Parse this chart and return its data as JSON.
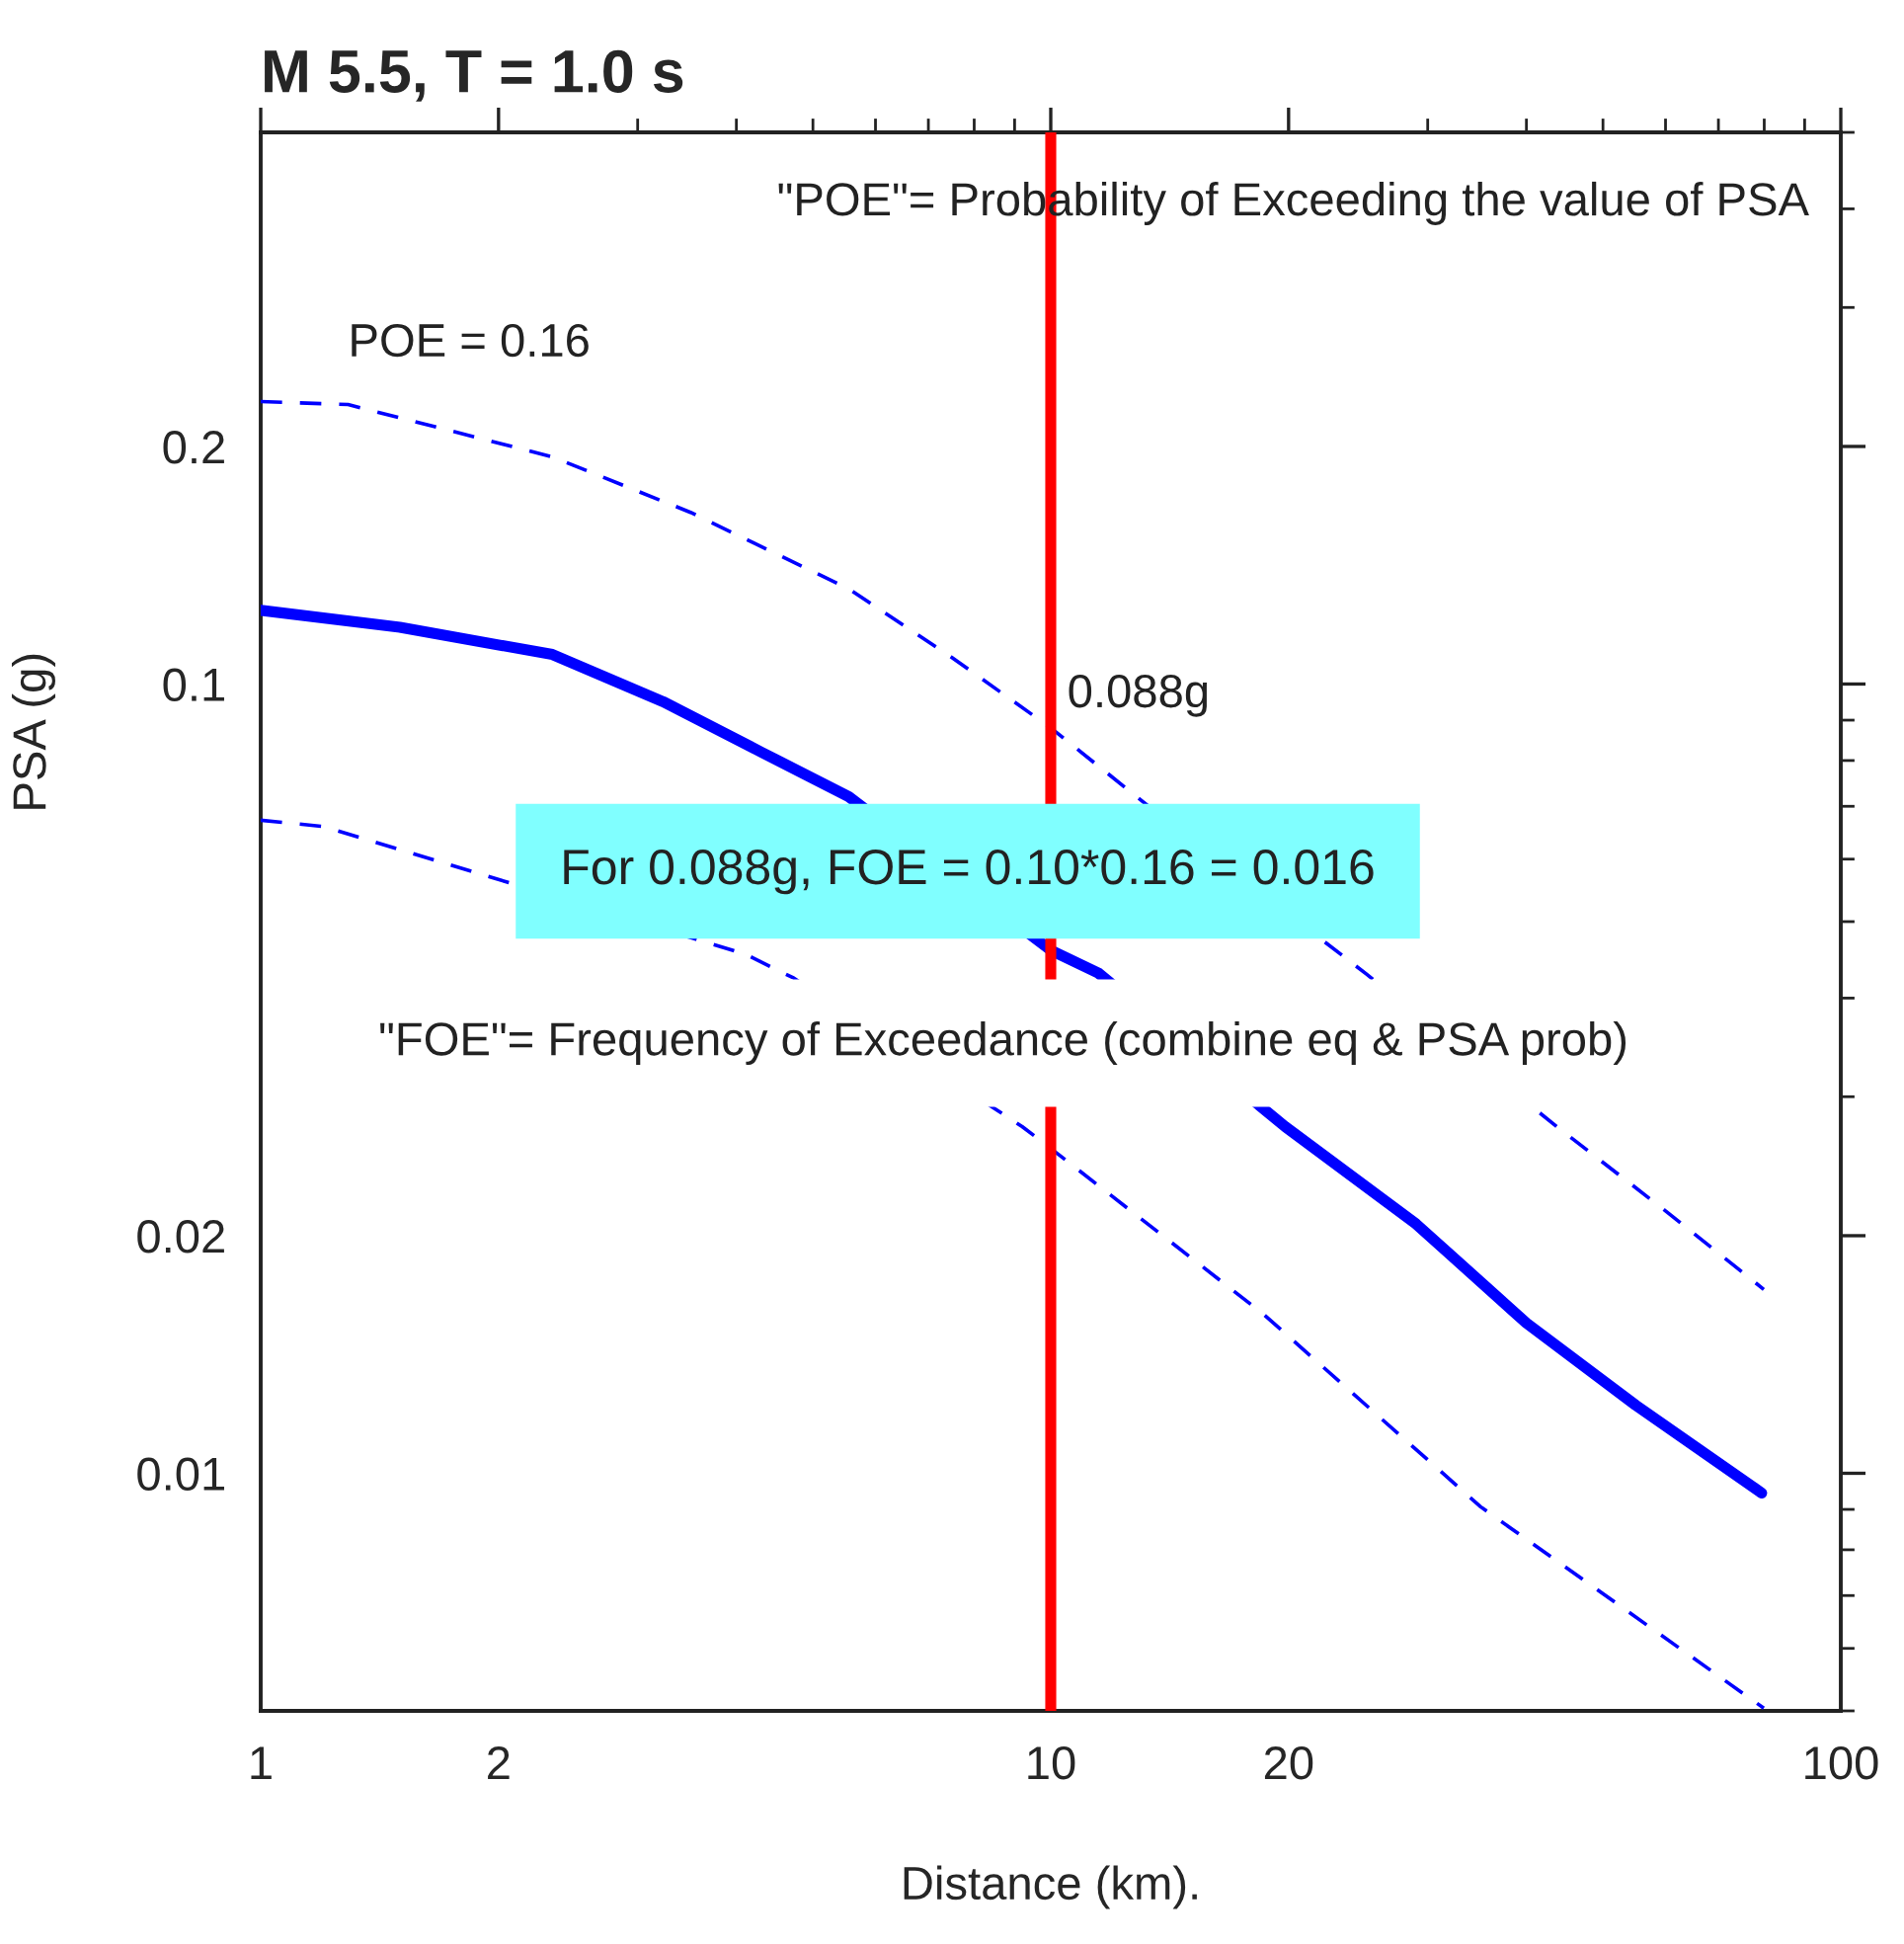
{
  "chart_data": {
    "type": "line",
    "title": "M 5.5, T = 1.0 s",
    "xlabel": "Distance (km).",
    "ylabel": "PSA (g)",
    "log": "xy",
    "xlim": [
      1,
      100
    ],
    "ylim": [
      0.005,
      0.5
    ],
    "xticks": [
      1,
      2,
      10,
      20,
      100
    ],
    "yticks": [
      0.01,
      0.02,
      0.1,
      0.2
    ],
    "series": [
      {
        "color": "#0000ff",
        "line_style": "solid",
        "x": [
          1,
          1.5,
          2.34,
          3.23,
          4.3,
          5.55,
          10,
          11.5,
          19.8,
          29.0,
          40,
          55,
          79.4
        ],
        "values": [
          0.124,
          0.118,
          0.109,
          0.095,
          0.082,
          0.072,
          0.046,
          0.043,
          0.0275,
          0.0207,
          0.0155,
          0.0122,
          0.00944
        ]
      },
      {
        "color": "#0000ff",
        "line_style": "dashed",
        "x": [
          1,
          1.29,
          2.34,
          3.5,
          5.55,
          7.5,
          10,
          13.3,
          25.1,
          43.7,
          60,
          79.9
        ],
        "values": [
          0.228,
          0.226,
          0.194,
          0.165,
          0.132,
          0.108,
          0.088,
          0.07,
          0.0429,
          0.0275,
          0.0215,
          0.0171
        ]
      },
      {
        "color": "#0000ff",
        "line_style": "dashed",
        "x": [
          1,
          1.2,
          4.1,
          4.73,
          9.2,
          10,
          18.6,
          35,
          79.9
        ],
        "values": [
          0.0672,
          0.066,
          0.0455,
          0.0424,
          0.0275,
          0.0258,
          0.0159,
          0.00907,
          0.00504
        ]
      }
    ],
    "ref_lines": [
      {
        "axis": "x",
        "value": 10,
        "color": "#ff0000"
      }
    ],
    "annotations": [
      "\"POE\"= Probability of Exceeding the value of PSA",
      {
        "text": "POE = 0.16",
        "x": 1.29,
        "y": 0.226
      },
      {
        "text": "0.088g",
        "x": 10,
        "y": 0.088
      },
      "For 0.088g, FOE = 0.10*0.16 = 0.016",
      "\"FOE\"= Frequency of Exceedance (combine eq & PSA prob)"
    ]
  }
}
